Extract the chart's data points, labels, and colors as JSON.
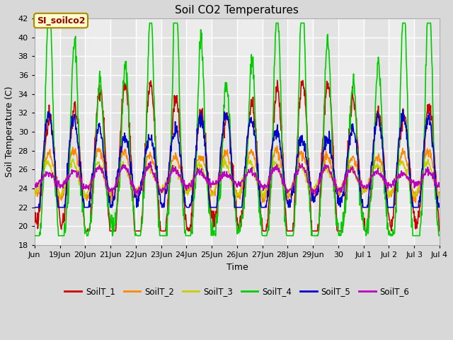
{
  "title": "Soil CO2 Temperatures",
  "xlabel": "Time",
  "ylabel": "Soil Temperature (C)",
  "ylim": [
    18,
    42
  ],
  "yticks": [
    18,
    20,
    22,
    24,
    26,
    28,
    30,
    32,
    34,
    36,
    38,
    40,
    42
  ],
  "fig_bg_color": "#d8d8d8",
  "plot_bg_color": "#e8e8e8",
  "grid_color": "#ffffff",
  "annotation_text": "SI_soilco2",
  "annotation_bg": "#ffffcc",
  "annotation_border": "#aa8800",
  "annotation_text_color": "#990000",
  "series_names": [
    "SoilT_1",
    "SoilT_2",
    "SoilT_3",
    "SoilT_4",
    "SoilT_5",
    "SoilT_6"
  ],
  "series_colors": [
    "#cc0000",
    "#ff8800",
    "#cccc00",
    "#00cc00",
    "#0000cc",
    "#bb00bb"
  ],
  "series_lw": [
    1.2,
    1.2,
    1.2,
    1.2,
    1.2,
    1.2
  ],
  "tick_labels": [
    "Jun",
    "19Jun",
    "20Jun",
    "21Jun",
    "22Jun",
    "23Jun",
    "24Jun",
    "25Jun",
    "26Jun",
    "27Jun",
    "28Jun",
    "29Jun",
    "30",
    "Jul 1",
    "Jul 2",
    "Jul 3",
    "Jul 4"
  ],
  "figsize": [
    6.4,
    4.8
  ],
  "dpi": 100
}
